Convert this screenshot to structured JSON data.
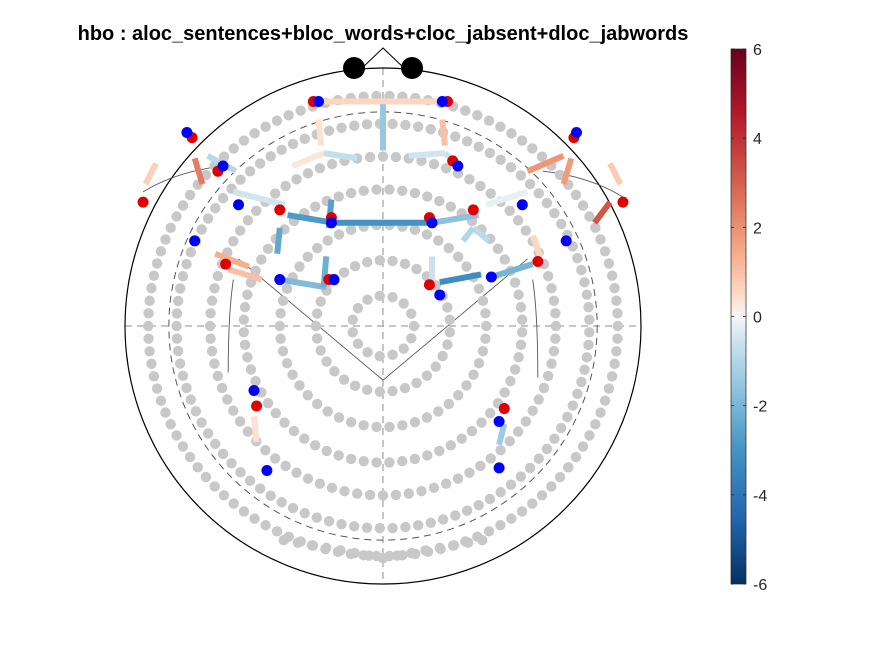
{
  "chart_data": {
    "type": "scatter",
    "subtype": "fnirs-head-topography",
    "title": "hbo : aloc_sentences+bloc_words+cloc_jabsent+dloc_jabwords",
    "colorbar": {
      "colormap": "red-white-blue diverging",
      "range": [
        -6,
        6
      ],
      "ticks": [
        -6,
        -4,
        -2,
        0,
        2,
        4,
        6
      ],
      "tick_labels": [
        "-6",
        "-4",
        "-2",
        "0",
        "2",
        "4",
        "6"
      ],
      "placement": "right"
    },
    "colors": {
      "sources": "#e00000",
      "detectors": "#0000ff",
      "unused_optodes": "#c8c8c8",
      "nasion_markers": "#000000",
      "head_outline": "#000000",
      "guides": "#8c8c8c"
    },
    "optode_coordinates": "head-normalized units: x from -1 (left) to 1 (right), y from -1 (back) to 1 (front)",
    "sources": [
      [
        -0.27,
        0.87
      ],
      [
        0.25,
        0.87
      ],
      [
        -0.74,
        0.73
      ],
      [
        0.74,
        0.73
      ],
      [
        -0.64,
        0.6
      ],
      [
        0.27,
        0.64
      ],
      [
        -0.93,
        0.48
      ],
      [
        0.93,
        0.48
      ],
      [
        -0.4,
        0.45
      ],
      [
        0.35,
        0.45
      ],
      [
        -0.2,
        0.42
      ],
      [
        0.18,
        0.42
      ],
      [
        -0.61,
        0.24
      ],
      [
        0.6,
        0.25
      ],
      [
        -0.21,
        0.18
      ],
      [
        0.18,
        0.16
      ],
      [
        -0.49,
        -0.31
      ],
      [
        0.47,
        -0.32
      ]
    ],
    "detectors": [
      [
        -0.25,
        0.87
      ],
      [
        0.23,
        0.87
      ],
      [
        -0.76,
        0.75
      ],
      [
        0.75,
        0.75
      ],
      [
        -0.62,
        0.62
      ],
      [
        0.29,
        0.62
      ],
      [
        -0.56,
        0.47
      ],
      [
        0.54,
        0.47
      ],
      [
        -0.2,
        0.4
      ],
      [
        0.19,
        0.4
      ],
      [
        -0.73,
        0.33
      ],
      [
        0.71,
        0.33
      ],
      [
        -0.4,
        0.18
      ],
      [
        0.42,
        0.19
      ],
      [
        -0.19,
        0.18
      ],
      [
        0.22,
        0.12
      ],
      [
        -0.5,
        -0.25
      ],
      [
        0.45,
        -0.37
      ],
      [
        -0.45,
        -0.56
      ],
      [
        0.45,
        -0.55
      ]
    ],
    "channels": [
      {
        "from": [
          -0.27,
          0.87
        ],
        "to": [
          0.25,
          0.87
        ],
        "value": 0.6
      },
      {
        "from": [
          0.0,
          0.86
        ],
        "to": [
          0.0,
          0.68
        ],
        "value": -1.4
      },
      {
        "from": [
          -0.25,
          0.8
        ],
        "to": [
          -0.24,
          0.7
        ],
        "value": 0.4
      },
      {
        "from": [
          0.23,
          0.8
        ],
        "to": [
          0.24,
          0.7
        ],
        "value": 1.0
      },
      {
        "from": [
          -0.35,
          0.62
        ],
        "to": [
          -0.23,
          0.67
        ],
        "value": 0.3
      },
      {
        "from": [
          -0.23,
          0.67
        ],
        "to": [
          -0.1,
          0.65
        ],
        "value": -0.7
      },
      {
        "from": [
          0.1,
          0.66
        ],
        "to": [
          0.24,
          0.67
        ],
        "value": -0.5
      },
      {
        "from": [
          0.24,
          0.67
        ],
        "to": [
          0.3,
          0.62
        ],
        "value": -0.6
      },
      {
        "from": [
          -0.73,
          0.65
        ],
        "to": [
          -0.7,
          0.55
        ],
        "value": 2.4
      },
      {
        "from": [
          -0.68,
          0.66
        ],
        "to": [
          -0.57,
          0.6
        ],
        "value": -0.9
      },
      {
        "from": [
          0.56,
          0.6
        ],
        "to": [
          0.7,
          0.66
        ],
        "value": 1.8
      },
      {
        "from": [
          0.7,
          0.55
        ],
        "to": [
          0.73,
          0.65
        ],
        "value": 1.7
      },
      {
        "from": [
          -0.88,
          0.63
        ],
        "to": [
          -0.92,
          0.55
        ],
        "value": 0.7
      },
      {
        "from": [
          0.88,
          0.63
        ],
        "to": [
          0.92,
          0.55
        ],
        "value": 0.8
      },
      {
        "from": [
          -0.58,
          0.52
        ],
        "to": [
          -0.38,
          0.47
        ],
        "value": -0.5
      },
      {
        "from": [
          0.4,
          0.47
        ],
        "to": [
          0.56,
          0.52
        ],
        "value": -0.2
      },
      {
        "from": [
          -0.37,
          0.43
        ],
        "to": [
          -0.19,
          0.4
        ],
        "value": -2.8
      },
      {
        "from": [
          -0.19,
          0.4
        ],
        "to": [
          0.19,
          0.4
        ],
        "value": -3.0
      },
      {
        "from": [
          0.19,
          0.4
        ],
        "to": [
          0.37,
          0.43
        ],
        "value": -1.6
      },
      {
        "from": [
          -0.4,
          0.38
        ],
        "to": [
          -0.41,
          0.28
        ],
        "value": -2.4
      },
      {
        "from": [
          -0.2,
          0.49
        ],
        "to": [
          -0.21,
          0.38
        ],
        "value": -2.6
      },
      {
        "from": [
          0.35,
          0.38
        ],
        "to": [
          0.41,
          0.33
        ],
        "value": -0.8
      },
      {
        "from": [
          0.35,
          0.38
        ],
        "to": [
          0.31,
          0.33
        ],
        "value": -1.0
      },
      {
        "from": [
          0.88,
          0.48
        ],
        "to": [
          0.82,
          0.4
        ],
        "value": 3.2
      },
      {
        "from": [
          0.58,
          0.35
        ],
        "to": [
          0.61,
          0.27
        ],
        "value": 0.6
      },
      {
        "from": [
          -0.65,
          0.28
        ],
        "to": [
          -0.52,
          0.23
        ],
        "value": 1.3
      },
      {
        "from": [
          -0.6,
          0.22
        ],
        "to": [
          -0.47,
          0.18
        ],
        "value": 1.0
      },
      {
        "from": [
          -0.4,
          0.18
        ],
        "to": [
          -0.22,
          0.15
        ],
        "value": -1.8
      },
      {
        "from": [
          -0.22,
          0.27
        ],
        "to": [
          -0.23,
          0.15
        ],
        "value": -2.2
      },
      {
        "from": [
          0.19,
          0.27
        ],
        "to": [
          0.19,
          0.16
        ],
        "value": -0.6
      },
      {
        "from": [
          0.22,
          0.17
        ],
        "to": [
          0.38,
          0.2
        ],
        "value": -3.2
      },
      {
        "from": [
          0.42,
          0.19
        ],
        "to": [
          0.58,
          0.24
        ],
        "value": -2.0
      },
      {
        "from": [
          -0.5,
          -0.35
        ],
        "to": [
          -0.49,
          -0.45
        ],
        "value": 0.4
      },
      {
        "from": [
          0.47,
          -0.38
        ],
        "to": [
          0.45,
          -0.46
        ],
        "value": -1.3
      }
    ],
    "grid": false,
    "legend": "none"
  }
}
